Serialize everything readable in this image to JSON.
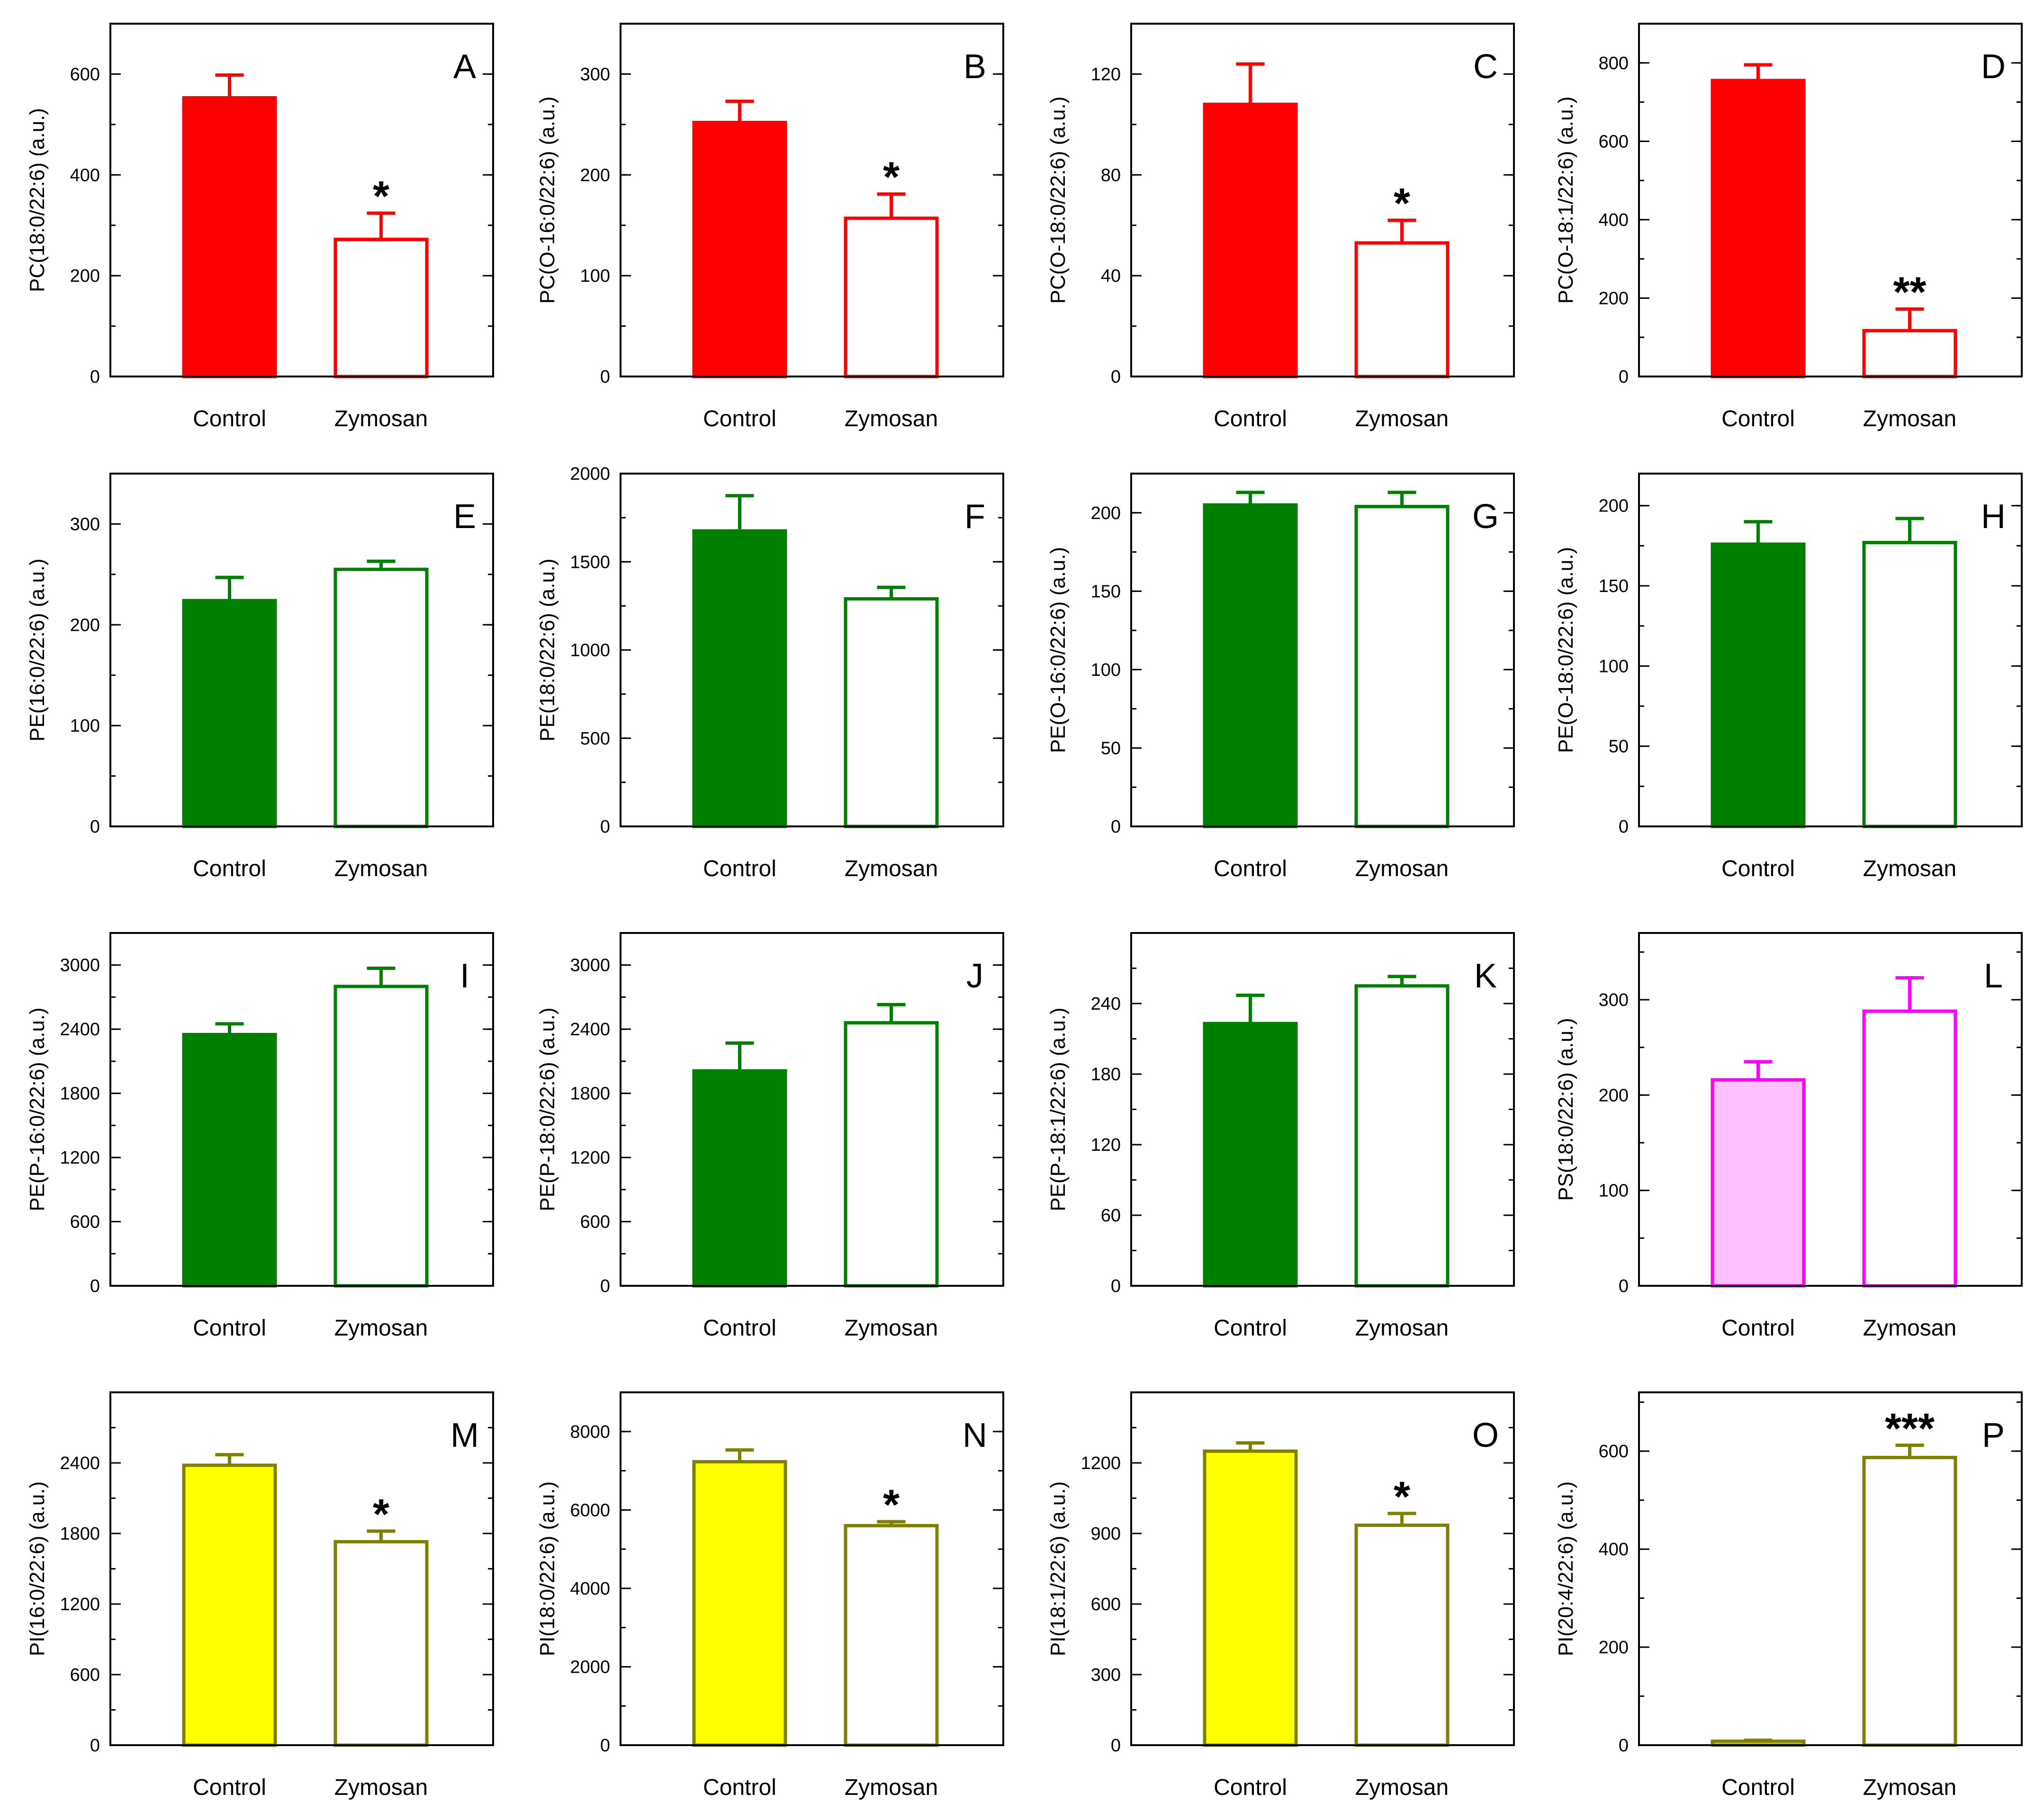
{
  "figure": {
    "description_free": true
  },
  "chart_data": [
    {
      "id": "A",
      "type": "bar",
      "panel_label": "A",
      "categories": [
        "Control",
        "Zymosan"
      ],
      "values": [
        553,
        272
      ],
      "errors": [
        45,
        52
      ],
      "ylabel": "PC(18:0/22:6) (a.u.)",
      "ylim": [
        0,
        700
      ],
      "yticks": [
        "0",
        "200",
        "400",
        "600"
      ],
      "ytick_values": [
        0,
        200,
        400,
        600
      ],
      "minor_step": 100,
      "annotations": [
        "",
        "*"
      ],
      "color": "#ff0000",
      "fill": "#ff0000"
    },
    {
      "id": "B",
      "type": "bar",
      "panel_label": "B",
      "categories": [
        "Control",
        "Zymosan"
      ],
      "values": [
        252,
        157
      ],
      "errors": [
        21,
        24
      ],
      "ylabel": "PC(O-16:0/22:6) (a.u.)",
      "ylim": [
        0,
        350
      ],
      "yticks": [
        "0",
        "100",
        "200",
        "300"
      ],
      "ytick_values": [
        0,
        100,
        200,
        300
      ],
      "minor_step": 50,
      "annotations": [
        "",
        "*"
      ],
      "color": "#ff0000",
      "fill": "#ff0000"
    },
    {
      "id": "C",
      "type": "bar",
      "panel_label": "C",
      "categories": [
        "Control",
        "Zymosan"
      ],
      "values": [
        108,
        53
      ],
      "errors": [
        16,
        9
      ],
      "ylabel": "PC(O-18:0/22:6) (a.u.)",
      "ylim": [
        0,
        140
      ],
      "yticks": [
        "0",
        "40",
        "80",
        "120"
      ],
      "ytick_values": [
        0,
        40,
        80,
        120
      ],
      "minor_step": 20,
      "annotations": [
        "",
        "*"
      ],
      "color": "#ff0000",
      "fill": "#ff0000"
    },
    {
      "id": "D",
      "type": "bar",
      "panel_label": "D",
      "categories": [
        "Control",
        "Zymosan"
      ],
      "values": [
        755,
        117
      ],
      "errors": [
        40,
        55
      ],
      "ylabel": "PC(O-18:1/22:6) (a.u.)",
      "ylim": [
        0,
        900
      ],
      "yticks": [
        "0",
        "200",
        "400",
        "600",
        "800"
      ],
      "ytick_values": [
        0,
        200,
        400,
        600,
        800
      ],
      "minor_step": 100,
      "annotations": [
        "",
        "**"
      ],
      "color": "#ff0000",
      "fill": "#ff0000"
    },
    {
      "id": "E",
      "type": "bar",
      "panel_label": "E",
      "categories": [
        "Control",
        "Zymosan"
      ],
      "values": [
        224,
        255
      ],
      "errors": [
        23,
        8
      ],
      "ylabel": "PE(16:0/22:6) (a.u.)",
      "ylim": [
        0,
        350
      ],
      "yticks": [
        "0",
        "100",
        "200",
        "300"
      ],
      "ytick_values": [
        0,
        100,
        200,
        300
      ],
      "minor_step": 50,
      "annotations": [
        "",
        ""
      ],
      "color": "#007f00",
      "fill": "#007f00"
    },
    {
      "id": "F",
      "type": "bar",
      "panel_label": "F",
      "categories": [
        "Control",
        "Zymosan"
      ],
      "values": [
        1675,
        1290
      ],
      "errors": [
        200,
        65
      ],
      "ylabel": "PE(18:0/22:6) (a.u.)",
      "ylim": [
        0,
        2000
      ],
      "yticks": [
        "0",
        "500",
        "1000",
        "1500",
        "2000"
      ],
      "ytick_values": [
        0,
        500,
        1000,
        1500,
        2000
      ],
      "minor_step": 250,
      "annotations": [
        "",
        ""
      ],
      "color": "#007f00",
      "fill": "#007f00"
    },
    {
      "id": "G",
      "type": "bar",
      "panel_label": "G",
      "categories": [
        "Control",
        "Zymosan"
      ],
      "values": [
        205,
        204
      ],
      "errors": [
        8,
        9
      ],
      "ylabel": "PE(O-16:0/22:6) (a.u.)",
      "ylim": [
        0,
        225
      ],
      "yticks": [
        "0",
        "50",
        "100",
        "150",
        "200"
      ],
      "ytick_values": [
        0,
        50,
        100,
        150,
        200
      ],
      "minor_step": 25,
      "annotations": [
        "",
        ""
      ],
      "color": "#007f00",
      "fill": "#007f00"
    },
    {
      "id": "H",
      "type": "bar",
      "panel_label": "H",
      "categories": [
        "Control",
        "Zymosan"
      ],
      "values": [
        176,
        177
      ],
      "errors": [
        14,
        15
      ],
      "ylabel": "PE(O-18:0/22:6) (a.u.)",
      "ylim": [
        0,
        220
      ],
      "yticks": [
        "0",
        "50",
        "100",
        "150",
        "200"
      ],
      "ytick_values": [
        0,
        50,
        100,
        150,
        200
      ],
      "minor_step": 25,
      "annotations": [
        "",
        ""
      ],
      "color": "#007f00",
      "fill": "#007f00"
    },
    {
      "id": "I",
      "type": "bar",
      "panel_label": "I",
      "categories": [
        "Control",
        "Zymosan"
      ],
      "values": [
        2350,
        2800
      ],
      "errors": [
        100,
        170
      ],
      "ylabel": "PE(P-16:0/22:6) (a.u.)",
      "ylim": [
        0,
        3300
      ],
      "yticks": [
        "0",
        "600",
        "1200",
        "1800",
        "2400",
        "3000"
      ],
      "ytick_values": [
        0,
        600,
        1200,
        1800,
        2400,
        3000
      ],
      "minor_step": 300,
      "annotations": [
        "",
        ""
      ],
      "color": "#007f00",
      "fill": "#007f00"
    },
    {
      "id": "J",
      "type": "bar",
      "panel_label": "J",
      "categories": [
        "Control",
        "Zymosan"
      ],
      "values": [
        2010,
        2460
      ],
      "errors": [
        260,
        170
      ],
      "ylabel": "PE(P-18:0/22:6) (a.u.)",
      "ylim": [
        0,
        3300
      ],
      "yticks": [
        "0",
        "600",
        "1200",
        "1800",
        "2400",
        "3000"
      ],
      "ytick_values": [
        0,
        600,
        1200,
        1800,
        2400,
        3000
      ],
      "minor_step": 300,
      "annotations": [
        "",
        ""
      ],
      "color": "#007f00",
      "fill": "#007f00"
    },
    {
      "id": "K",
      "type": "bar",
      "panel_label": "K",
      "categories": [
        "Control",
        "Zymosan"
      ],
      "values": [
        223,
        255
      ],
      "errors": [
        24,
        8
      ],
      "ylabel": "PE(P-18:1/22:6) (a.u.)",
      "ylim": [
        0,
        300
      ],
      "yticks": [
        "0",
        "60",
        "120",
        "180",
        "240"
      ],
      "ytick_values": [
        0,
        60,
        120,
        180,
        240
      ],
      "minor_step": 30,
      "annotations": [
        "",
        ""
      ],
      "color": "#007f00",
      "fill": "#007f00"
    },
    {
      "id": "L",
      "type": "bar",
      "panel_label": "L",
      "categories": [
        "Control",
        "Zymosan"
      ],
      "values": [
        216,
        288
      ],
      "errors": [
        19,
        35
      ],
      "ylabel": "PS(18:0/22:6) (a.u.)",
      "ylim": [
        0,
        370
      ],
      "yticks": [
        "0",
        "100",
        "200",
        "300"
      ],
      "ytick_values": [
        0,
        100,
        200,
        300
      ],
      "minor_step": 50,
      "annotations": [
        "",
        ""
      ],
      "color": "#ff00ff",
      "fill": "#ffc0ff"
    },
    {
      "id": "M",
      "type": "bar",
      "panel_label": "M",
      "categories": [
        "Control",
        "Zymosan"
      ],
      "values": [
        2380,
        1730
      ],
      "errors": [
        90,
        90
      ],
      "ylabel": "PI(16:0/22:6) (a.u.)",
      "ylim": [
        0,
        3000
      ],
      "yticks": [
        "0",
        "600",
        "1200",
        "1800",
        "2400"
      ],
      "ytick_values": [
        0,
        600,
        1200,
        1800,
        2400
      ],
      "minor_step": 300,
      "annotations": [
        "",
        "*"
      ],
      "color": "#7f7f00",
      "fill": "#ffff00"
    },
    {
      "id": "N",
      "type": "bar",
      "panel_label": "N",
      "categories": [
        "Control",
        "Zymosan"
      ],
      "values": [
        7230,
        5600
      ],
      "errors": [
        300,
        100
      ],
      "ylabel": "PI(18:0/22:6) (a.u.)",
      "ylim": [
        0,
        9000
      ],
      "yticks": [
        "0",
        "2000",
        "4000",
        "6000",
        "8000"
      ],
      "ytick_values": [
        0,
        2000,
        4000,
        6000,
        8000
      ],
      "minor_step": 1000,
      "annotations": [
        "",
        "*"
      ],
      "color": "#7f7f00",
      "fill": "#ffff00"
    },
    {
      "id": "O",
      "type": "bar",
      "panel_label": "O",
      "categories": [
        "Control",
        "Zymosan"
      ],
      "values": [
        1250,
        935
      ],
      "errors": [
        35,
        50
      ],
      "ylabel": "PI(18:1/22:6) (a.u.)",
      "ylim": [
        0,
        1500
      ],
      "yticks": [
        "0",
        "300",
        "600",
        "900",
        "1200"
      ],
      "ytick_values": [
        0,
        300,
        600,
        900,
        1200
      ],
      "minor_step": 150,
      "annotations": [
        "",
        "*"
      ],
      "color": "#7f7f00",
      "fill": "#ffff00"
    },
    {
      "id": "P",
      "type": "bar",
      "panel_label": "P",
      "categories": [
        "Control",
        "Zymosan"
      ],
      "values": [
        8,
        587
      ],
      "errors": [
        2,
        25
      ],
      "ylabel": "PI(20:4/22:6) (a.u.)",
      "ylim": [
        0,
        720
      ],
      "yticks": [
        "0",
        "200",
        "400",
        "600"
      ],
      "ytick_values": [
        0,
        200,
        400,
        600
      ],
      "minor_step": 100,
      "annotations": [
        "",
        "***"
      ],
      "color": "#7f7f00",
      "fill": "#ffff00"
    }
  ]
}
